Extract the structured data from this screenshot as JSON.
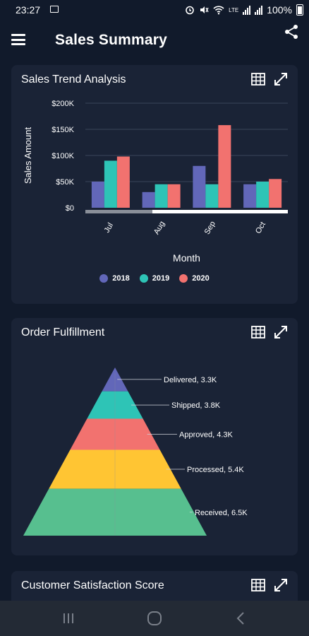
{
  "status_bar": {
    "time": "23:27",
    "battery": "100%"
  },
  "app_bar": {
    "title": "Sales Summary"
  },
  "cards": {
    "sales_trend": {
      "title": "Sales Trend Analysis"
    },
    "order_fulfillment": {
      "title": "Order Fulfillment"
    },
    "customer_satisfaction": {
      "title": "Customer Satisfaction Score"
    }
  },
  "colors": {
    "series_2018": "#6267b9",
    "series_2019": "#2ec4b6",
    "series_2020": "#f2726f"
  },
  "chart_data": [
    {
      "type": "bar",
      "title": "Sales Trend Analysis",
      "xlabel": "Month",
      "ylabel": "Sales Amount",
      "categories": [
        "Jul",
        "Aug",
        "Sep",
        "Oct"
      ],
      "y_ticks": [
        "$0",
        "$50K",
        "$100K",
        "$150K",
        "$200K"
      ],
      "ylim": [
        0,
        200000
      ],
      "grid": true,
      "legend_position": "bottom",
      "series": [
        {
          "name": "2018",
          "values": [
            50000,
            30000,
            80000,
            45000
          ]
        },
        {
          "name": "2019",
          "values": [
            90000,
            45000,
            45000,
            50000
          ]
        },
        {
          "name": "2020",
          "values": [
            98000,
            45000,
            158000,
            55000
          ]
        }
      ]
    },
    {
      "type": "pyramid",
      "title": "Order Fulfillment",
      "levels": [
        {
          "label": "Delivered, 3.3K",
          "value": 3300,
          "color": "#6267b9"
        },
        {
          "label": "Shipped, 3.8K",
          "value": 3800,
          "color": "#2ec4b6"
        },
        {
          "label": "Approved, 4.3K",
          "value": 4300,
          "color": "#f2726f"
        },
        {
          "label": "Processed, 5.4K",
          "value": 5400,
          "color": "#ffc533"
        },
        {
          "label": "Received, 6.5K",
          "value": 6500,
          "color": "#57bf8f"
        }
      ]
    }
  ]
}
